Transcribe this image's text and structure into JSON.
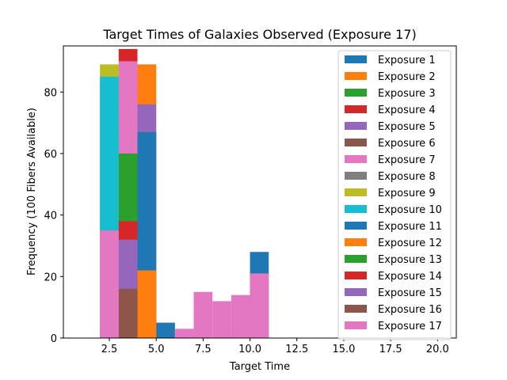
{
  "chart_data": {
    "type": "bar",
    "title": "Target Times of Galaxies Observed (Exposure 17)",
    "xlabel": "Target Time",
    "ylabel": "Frequency (100 Fibers Available)",
    "xlim": [
      0.05,
      21.0
    ],
    "ylim": [
      0,
      95
    ],
    "xticks": [
      "2.5",
      "5.0",
      "7.5",
      "10.0",
      "12.5",
      "15.0",
      "17.5",
      "20.0"
    ],
    "xtick_values": [
      2.5,
      5.0,
      7.5,
      10.0,
      12.5,
      15.0,
      17.5,
      20.0
    ],
    "yticks": [
      "0",
      "20",
      "40",
      "60",
      "80"
    ],
    "ytick_values": [
      0,
      20,
      40,
      60,
      80
    ],
    "legend_position": "upper right",
    "grid": false,
    "series": [
      {
        "name": "Exposure 1",
        "color": "#1f77b4",
        "bars": [
          {
            "x0": 5,
            "x1": 6,
            "value": 5
          },
          {
            "x0": 10,
            "x1": 11,
            "value": 28
          }
        ]
      },
      {
        "name": "Exposure 2",
        "color": "#ff7f0e",
        "bars": [
          {
            "x0": 4,
            "x1": 5,
            "value": 89
          }
        ]
      },
      {
        "name": "Exposure 3",
        "color": "#2ca02c",
        "bars": []
      },
      {
        "name": "Exposure 4",
        "color": "#d62728",
        "bars": [
          {
            "x0": 3,
            "x1": 4,
            "value": 94
          }
        ]
      },
      {
        "name": "Exposure 5",
        "color": "#9467bd",
        "bars": [
          {
            "x0": 4,
            "x1": 5,
            "value": 76
          }
        ]
      },
      {
        "name": "Exposure 6",
        "color": "#8c564b",
        "bars": []
      },
      {
        "name": "Exposure 7",
        "color": "#e377c2",
        "bars": [
          {
            "x0": 3,
            "x1": 4,
            "value": 90
          }
        ]
      },
      {
        "name": "Exposure 8",
        "color": "#7f7f7f",
        "bars": []
      },
      {
        "name": "Exposure 9",
        "color": "#bcbd22",
        "bars": [
          {
            "x0": 2,
            "x1": 3,
            "value": 89
          }
        ]
      },
      {
        "name": "Exposure 10",
        "color": "#17becf",
        "bars": [
          {
            "x0": 2,
            "x1": 3,
            "value": 85
          }
        ]
      },
      {
        "name": "Exposure 11",
        "color": "#1f77b4",
        "bars": [
          {
            "x0": 4,
            "x1": 5,
            "value": 67
          }
        ]
      },
      {
        "name": "Exposure 12",
        "color": "#ff7f0e",
        "bars": [
          {
            "x0": 4,
            "x1": 5,
            "value": 22
          }
        ]
      },
      {
        "name": "Exposure 13",
        "color": "#2ca02c",
        "bars": [
          {
            "x0": 3,
            "x1": 4,
            "value": 60
          }
        ]
      },
      {
        "name": "Exposure 14",
        "color": "#d62728",
        "bars": [
          {
            "x0": 3,
            "x1": 4,
            "value": 38
          }
        ]
      },
      {
        "name": "Exposure 15",
        "color": "#9467bd",
        "bars": [
          {
            "x0": 3,
            "x1": 4,
            "value": 32
          }
        ]
      },
      {
        "name": "Exposure 16",
        "color": "#8c564b",
        "bars": [
          {
            "x0": 3,
            "x1": 4,
            "value": 16
          }
        ]
      },
      {
        "name": "Exposure 17",
        "color": "#e377c2",
        "bars": [
          {
            "x0": 2,
            "x1": 3,
            "value": 35
          },
          {
            "x0": 6,
            "x1": 7,
            "value": 3
          },
          {
            "x0": 7,
            "x1": 8,
            "value": 15
          },
          {
            "x0": 8,
            "x1": 9,
            "value": 12
          },
          {
            "x0": 9,
            "x1": 10,
            "value": 14
          },
          {
            "x0": 10,
            "x1": 11,
            "value": 21
          }
        ]
      }
    ]
  }
}
